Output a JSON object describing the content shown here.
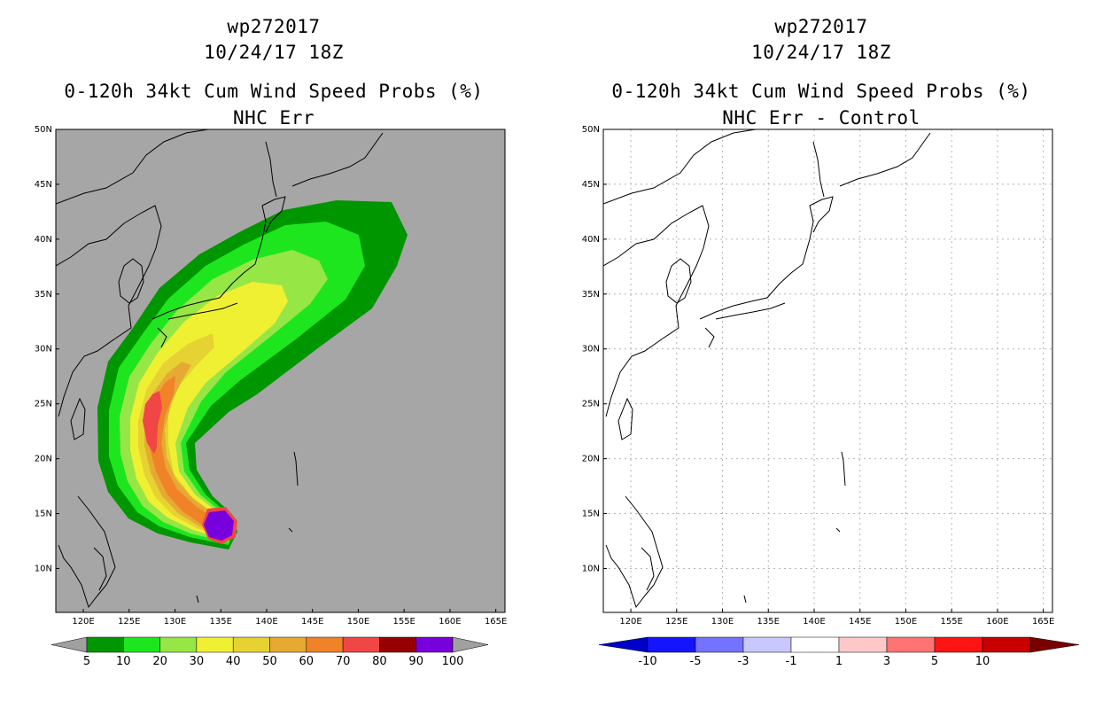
{
  "left": {
    "storm_id": "wp272017",
    "date": "10/24/17 18Z",
    "product": "0-120h 34kt Cum Wind Speed Probs (%)",
    "subtitle": "NHC Err",
    "colorbar": {
      "labels": [
        "5",
        "10",
        "20",
        "30",
        "40",
        "50",
        "60",
        "70",
        "80",
        "90",
        "100"
      ],
      "colors": [
        "#009600",
        "#1ee61e",
        "#96e646",
        "#f0f032",
        "#e6d232",
        "#e6aa32",
        "#f08228",
        "#f04646",
        "#960000",
        "#7800dc"
      ],
      "end_color": "#a0a0a0"
    },
    "map_background": "#a6a6a6"
  },
  "right": {
    "storm_id": "wp272017",
    "date": "10/24/17 18Z",
    "product": "0-120h 34kt Cum Wind Speed Probs (%)",
    "subtitle": "NHC Err - Control",
    "colorbar": {
      "labels": [
        "-10",
        "-5",
        "-3",
        "-1",
        "1",
        "3",
        "5",
        "10"
      ],
      "colors": [
        "#0000c8",
        "#1414ff",
        "#7373ff",
        "#c8c8ff",
        "#ffffff",
        "#ffc8c8",
        "#ff7373",
        "#ff1414",
        "#c80000",
        "#780000"
      ]
    },
    "map_background": "#ffffff"
  },
  "axes": {
    "lat_labels": [
      "50N",
      "45N",
      "40N",
      "35N",
      "30N",
      "25N",
      "20N",
      "15N",
      "10N"
    ],
    "lon_labels": [
      "120E",
      "125E",
      "130E",
      "135E",
      "140E",
      "145E",
      "150E",
      "155E",
      "160E",
      "165E"
    ],
    "lat_range": [
      6,
      50
    ],
    "lon_range": [
      117,
      166
    ]
  }
}
